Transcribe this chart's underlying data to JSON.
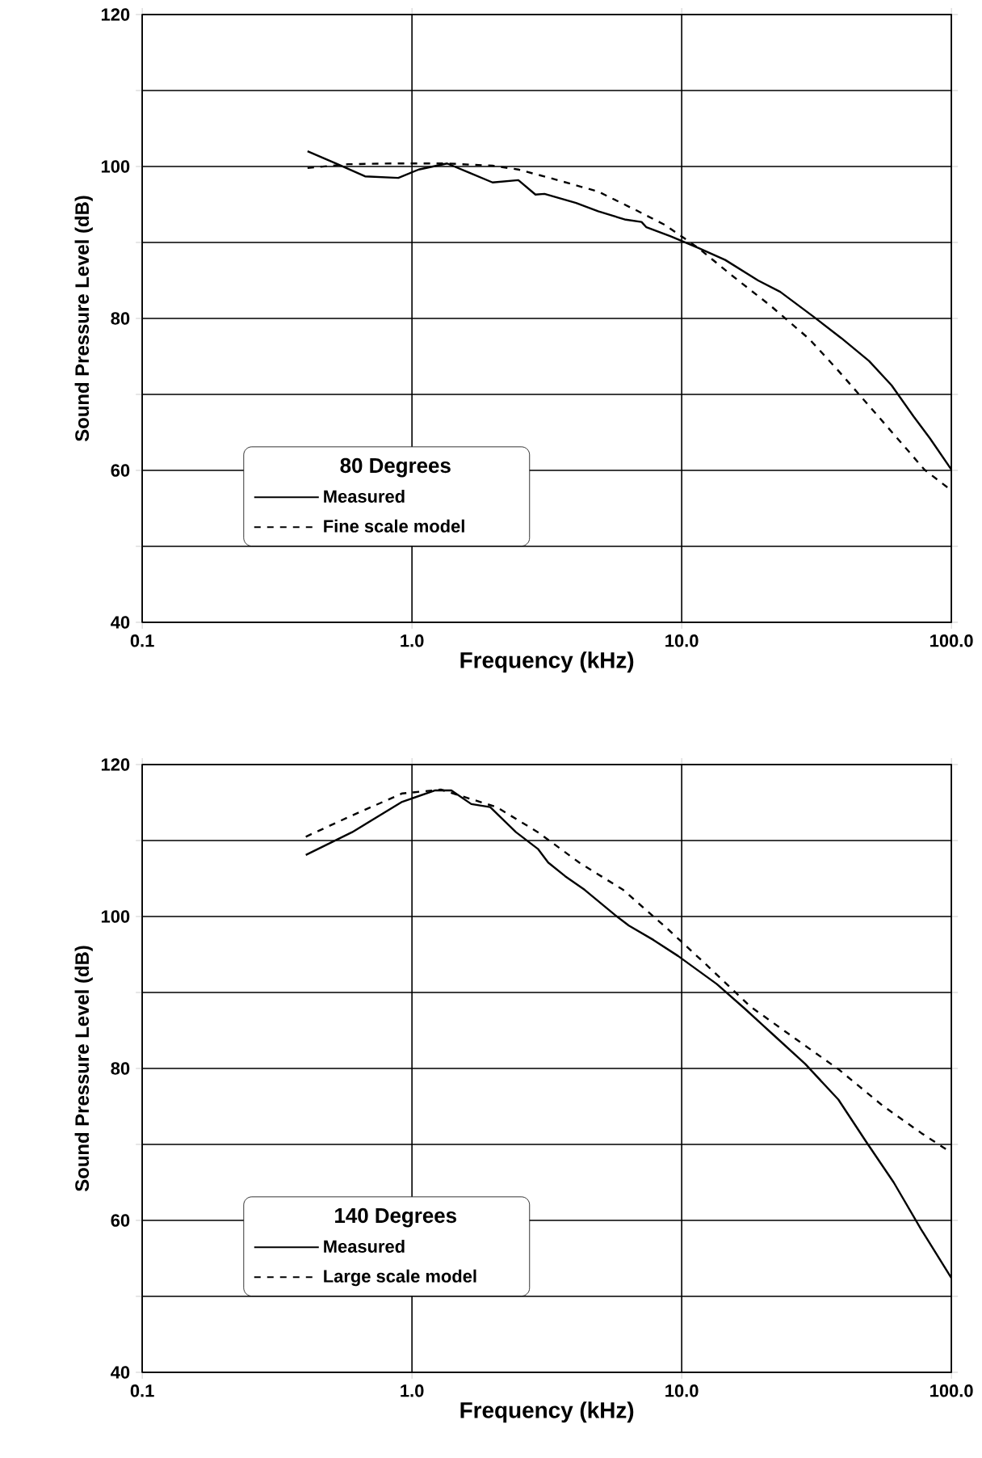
{
  "chart_data": [
    {
      "type": "line",
      "legend_title": "80 Degrees",
      "xlabel": "Frequency (kHz)",
      "ylabel": "Sound Pressure Level (dB)",
      "log": "x",
      "grid": true,
      "legend": "bottom left",
      "xlim": [
        0.1,
        100
      ],
      "xticks": [
        0.1,
        {
          "value": 1,
          "label": "1.0"
        },
        {
          "value": 10,
          "label": "10.0"
        },
        {
          "value": 100,
          "label": "100.0"
        }
      ],
      "ylim": [
        40,
        120
      ],
      "yticks": [
        40,
        {
          "value": 50,
          "label": null
        },
        60,
        {
          "value": 70,
          "label": null
        },
        80,
        {
          "value": 90,
          "label": null
        },
        100,
        {
          "value": 110,
          "label": null
        },
        120
      ],
      "series": [
        {
          "name": "Measured",
          "color": "#000000",
          "line_style": "solid",
          "x": [
            0.41,
            0.53,
            0.67,
            0.89,
            1.06,
            1.35,
            1.63,
            1.99,
            2.48,
            2.87,
            3.1,
            4.06,
            4.9,
            6.2,
            7.1,
            7.4,
            9.1,
            11.5,
            14.5,
            19.2,
            23.2,
            30.9,
            39.1,
            49.5,
            60,
            72.4,
            83.3,
            100
          ],
          "values": [
            102,
            100.3,
            98.7,
            98.5,
            99.6,
            100.4,
            99.2,
            97.9,
            98.2,
            96.3,
            96.4,
            95.2,
            94.1,
            93,
            92.7,
            92,
            90.8,
            89.3,
            87.7,
            85,
            83.5,
            80.2,
            77.4,
            74.4,
            71.2,
            67.1,
            64.2,
            60.1
          ]
        },
        {
          "name": "Fine scale model",
          "color": "#000000",
          "line_style": "dashed",
          "x": [
            0.41,
            0.58,
            0.84,
            1.35,
            1.99,
            2.48,
            3.24,
            4.9,
            6.82,
            8.67,
            11.5,
            15.3,
            21.3,
            29.7,
            37.7,
            49.5,
            66,
            79.4,
            98
          ],
          "values": [
            99.8,
            100.3,
            100.4,
            100.4,
            100.1,
            99.6,
            98.5,
            96.7,
            94.2,
            92.3,
            89.3,
            85.7,
            81.7,
            77.3,
            73.3,
            68.5,
            63.4,
            60.1,
            57.6
          ]
        }
      ]
    },
    {
      "type": "line",
      "legend_title": "140 Degrees",
      "xlabel": "Frequency (kHz)",
      "ylabel": "Sound Pressure Level (dB)",
      "log": "x",
      "grid": true,
      "legend": "bottom left",
      "xlim": [
        0.1,
        100
      ],
      "xticks": [
        0.1,
        {
          "value": 1,
          "label": "1.0"
        },
        {
          "value": 10,
          "label": "10.0"
        },
        {
          "value": 100,
          "label": "100.0"
        }
      ],
      "ylim": [
        40,
        120
      ],
      "yticks": [
        40,
        {
          "value": 50,
          "label": null
        },
        60,
        {
          "value": 70,
          "label": null
        },
        80,
        {
          "value": 90,
          "label": null
        },
        100,
        {
          "value": 110,
          "label": null
        },
        120
      ],
      "series": [
        {
          "name": "Measured",
          "color": "#000000",
          "line_style": "solid",
          "x": [
            0.404,
            0.6,
            0.92,
            1.22,
            1.4,
            1.66,
            1.95,
            2.43,
            2.93,
            3.2,
            3.7,
            4.37,
            5.66,
            6.37,
            7.87,
            9.7,
            13.5,
            17.1,
            21.6,
            28.7,
            38.1,
            48.2,
            61.1,
            77.3,
            100
          ],
          "values": [
            108.1,
            111.1,
            115.1,
            116.6,
            116.6,
            114.8,
            114.4,
            111.1,
            108.9,
            107.1,
            105.3,
            103.5,
            100.2,
            98.8,
            96.9,
            94.8,
            91.1,
            87.9,
            84.6,
            80.6,
            75.9,
            70.4,
            65,
            58.8,
            52.4
          ]
        },
        {
          "name": "Large scale model",
          "color": "#000000",
          "line_style": "dashed",
          "x": [
            0.404,
            0.6,
            0.92,
            1.28,
            2.06,
            2.93,
            4.17,
            6.07,
            8.85,
            12.3,
            17.9,
            27.4,
            38.1,
            55.6,
            77.3,
            100
          ],
          "values": [
            110.5,
            113.3,
            116.2,
            116.7,
            114.4,
            111.1,
            107.1,
            103.5,
            98.4,
            93.7,
            88.2,
            83.5,
            79.9,
            75.1,
            71.5,
            68.9
          ]
        }
      ]
    }
  ]
}
